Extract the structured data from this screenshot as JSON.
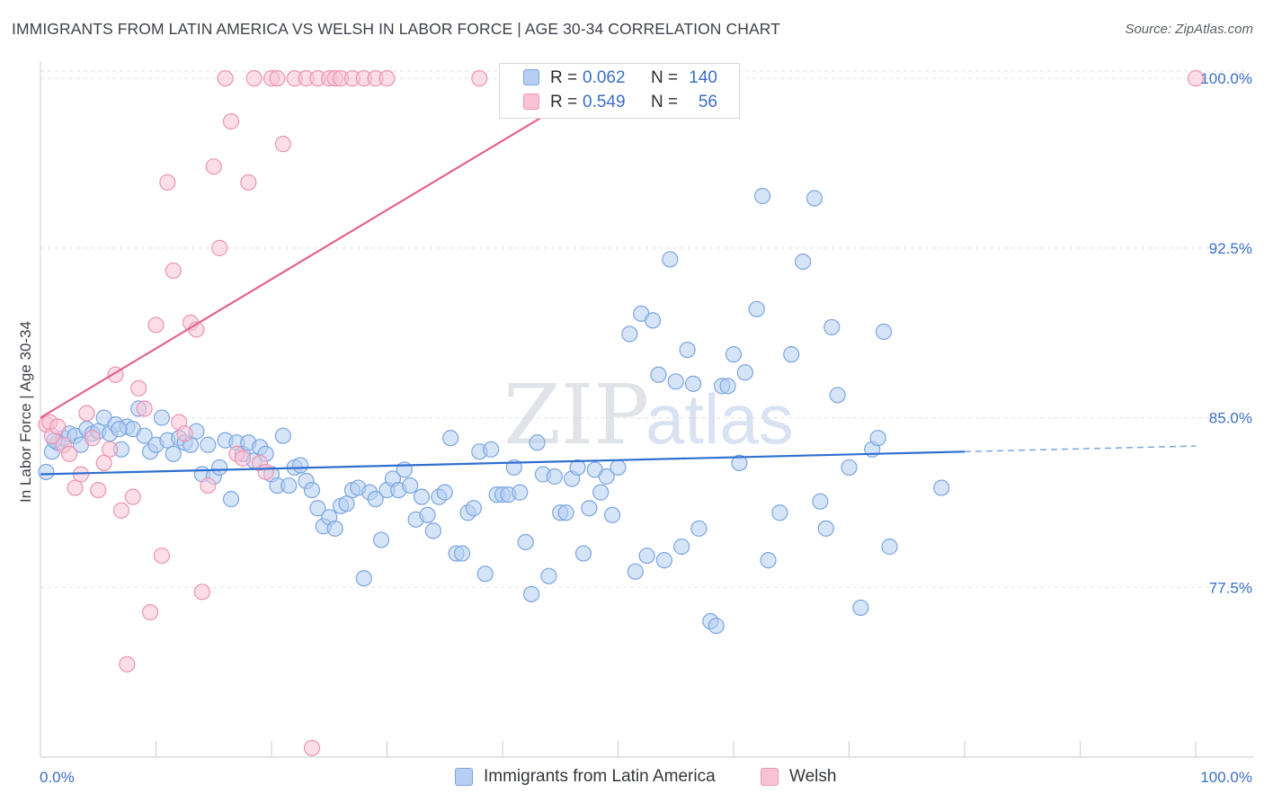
{
  "title": "IMMIGRANTS FROM LATIN AMERICA VS WELSH IN LABOR FORCE | AGE 30-34 CORRELATION CHART",
  "source": "Source: ZipAtlas.com",
  "watermark": {
    "zip": "ZIP",
    "atlas": "atlas"
  },
  "legend": {
    "rows": [
      {
        "r_label": "R =",
        "r_value": "0.062",
        "n_label": "N =",
        "n_value": "140",
        "color": "#7aa6e0"
      },
      {
        "r_label": "R =",
        "r_value": "0.549",
        "n_label": "N =",
        "n_value": "56",
        "color": "#ec94b3"
      }
    ]
  },
  "bottom_legend": [
    "Immigrants from Latin America",
    "Welsh"
  ],
  "chart_data": {
    "type": "scatter",
    "xlabel": "",
    "ylabel": "In Labor Force | Age 30-34",
    "xlim": [
      0,
      100
    ],
    "ylim": [
      70.0,
      101.0
    ],
    "x_tick_labels": [
      "0.0%",
      "100.0%"
    ],
    "y_ticks": [
      77.5,
      85.0,
      92.5,
      100.0
    ],
    "y_tick_labels": [
      "77.5%",
      "85.0%",
      "92.5%",
      "100.0%"
    ],
    "grid": true,
    "legend_position": "top-center",
    "series": [
      {
        "name": "Immigrants from Latin America",
        "color": "#7aa6e0",
        "fill": "#b5cef2",
        "trend": {
          "x": [
            0,
            80
          ],
          "y": [
            82.5,
            83.5
          ],
          "dashed_to": 100
        },
        "points": [
          [
            0.5,
            82.6
          ],
          [
            1.0,
            83.5
          ],
          [
            1.5,
            83.9
          ],
          [
            2.0,
            84.1
          ],
          [
            2.5,
            84.3
          ],
          [
            3.0,
            84.2
          ],
          [
            3.5,
            83.8
          ],
          [
            4.0,
            84.5
          ],
          [
            4.5,
            84.3
          ],
          [
            5.0,
            84.4
          ],
          [
            5.5,
            85.0
          ],
          [
            6.0,
            84.3
          ],
          [
            6.5,
            84.7
          ],
          [
            7.0,
            83.6
          ],
          [
            7.5,
            84.6
          ],
          [
            8.0,
            84.5
          ],
          [
            8.5,
            85.4
          ],
          [
            9.0,
            84.2
          ],
          [
            9.5,
            83.5
          ],
          [
            10.0,
            83.8
          ],
          [
            10.5,
            85.0
          ],
          [
            11.0,
            84.0
          ],
          [
            11.5,
            83.4
          ],
          [
            12.0,
            84.1
          ],
          [
            12.5,
            83.9
          ],
          [
            13.0,
            83.8
          ],
          [
            13.5,
            84.4
          ],
          [
            14.0,
            82.5
          ],
          [
            14.5,
            83.8
          ],
          [
            15.0,
            82.4
          ],
          [
            15.5,
            82.8
          ],
          [
            16.0,
            84.0
          ],
          [
            16.5,
            81.4
          ],
          [
            17.0,
            83.9
          ],
          [
            17.5,
            83.4
          ],
          [
            18.0,
            83.9
          ],
          [
            18.5,
            83.1
          ],
          [
            19.0,
            83.7
          ],
          [
            19.5,
            83.4
          ],
          [
            20.0,
            82.5
          ],
          [
            20.5,
            82.0
          ],
          [
            21.0,
            84.2
          ],
          [
            21.5,
            82.0
          ],
          [
            22.0,
            82.8
          ],
          [
            22.5,
            82.9
          ],
          [
            23.0,
            82.2
          ],
          [
            23.5,
            81.8
          ],
          [
            24.0,
            81.0
          ],
          [
            24.5,
            80.2
          ],
          [
            25.0,
            80.6
          ],
          [
            25.5,
            80.1
          ],
          [
            26.0,
            81.1
          ],
          [
            26.5,
            81.2
          ],
          [
            27.0,
            81.8
          ],
          [
            27.5,
            81.9
          ],
          [
            28.0,
            77.9
          ],
          [
            28.5,
            81.7
          ],
          [
            29.0,
            81.4
          ],
          [
            29.5,
            79.6
          ],
          [
            30.0,
            81.8
          ],
          [
            30.5,
            82.3
          ],
          [
            31.0,
            81.8
          ],
          [
            31.5,
            82.7
          ],
          [
            32.0,
            82.0
          ],
          [
            32.5,
            80.5
          ],
          [
            33.0,
            81.5
          ],
          [
            33.5,
            80.7
          ],
          [
            34.0,
            80.0
          ],
          [
            34.5,
            81.5
          ],
          [
            35.0,
            81.7
          ],
          [
            35.5,
            84.1
          ],
          [
            36.0,
            79.0
          ],
          [
            36.5,
            79.0
          ],
          [
            37.0,
            80.8
          ],
          [
            37.5,
            81.0
          ],
          [
            38.0,
            83.5
          ],
          [
            38.5,
            78.1
          ],
          [
            39.0,
            83.6
          ],
          [
            39.5,
            81.6
          ],
          [
            40.0,
            81.6
          ],
          [
            40.5,
            81.6
          ],
          [
            41.0,
            82.8
          ],
          [
            41.5,
            81.7
          ],
          [
            42.0,
            79.5
          ],
          [
            42.5,
            77.2
          ],
          [
            43.0,
            83.9
          ],
          [
            43.5,
            82.5
          ],
          [
            44.0,
            78.0
          ],
          [
            44.5,
            82.4
          ],
          [
            45.0,
            80.8
          ],
          [
            45.5,
            80.8
          ],
          [
            46.0,
            82.3
          ],
          [
            46.5,
            82.8
          ],
          [
            47.0,
            79.0
          ],
          [
            47.5,
            81.0
          ],
          [
            48.0,
            82.7
          ],
          [
            48.5,
            81.7
          ],
          [
            49.0,
            82.4
          ],
          [
            49.5,
            80.7
          ],
          [
            50.0,
            82.8
          ],
          [
            51.0,
            88.7
          ],
          [
            51.5,
            78.2
          ],
          [
            52.0,
            89.6
          ],
          [
            52.5,
            78.9
          ],
          [
            53.0,
            89.3
          ],
          [
            53.5,
            86.9
          ],
          [
            54.0,
            78.7
          ],
          [
            54.5,
            92.0
          ],
          [
            55.0,
            86.6
          ],
          [
            55.5,
            79.3
          ],
          [
            56.0,
            88.0
          ],
          [
            56.5,
            86.5
          ],
          [
            57.0,
            80.1
          ],
          [
            58.0,
            76.0
          ],
          [
            58.5,
            75.8
          ],
          [
            59.0,
            86.4
          ],
          [
            59.5,
            86.4
          ],
          [
            60.0,
            87.8
          ],
          [
            60.5,
            83.0
          ],
          [
            61.0,
            87.0
          ],
          [
            62.0,
            89.8
          ],
          [
            62.5,
            94.8
          ],
          [
            63.0,
            78.7
          ],
          [
            64.0,
            80.8
          ],
          [
            65.0,
            87.8
          ],
          [
            66.0,
            91.9
          ],
          [
            67.0,
            94.7
          ],
          [
            67.5,
            81.3
          ],
          [
            68.0,
            80.1
          ],
          [
            68.5,
            89.0
          ],
          [
            69.0,
            86.0
          ],
          [
            70.0,
            82.8
          ],
          [
            71.0,
            76.6
          ],
          [
            72.0,
            83.6
          ],
          [
            72.5,
            84.1
          ],
          [
            73.0,
            88.8
          ],
          [
            73.5,
            79.3
          ],
          [
            78.0,
            81.9
          ],
          [
            1.2,
            84.0
          ],
          [
            6.8,
            84.5
          ]
        ]
      },
      {
        "name": "Welsh",
        "color": "#ec94b3",
        "fill": "#f8c2d4",
        "trend": {
          "x": [
            0,
            49
          ],
          "y": [
            85.0,
            100.0
          ]
        },
        "points": [
          [
            0.5,
            84.7
          ],
          [
            0.8,
            84.8
          ],
          [
            1.0,
            84.2
          ],
          [
            1.5,
            84.6
          ],
          [
            2.0,
            83.8
          ],
          [
            2.5,
            83.4
          ],
          [
            3.0,
            81.9
          ],
          [
            3.5,
            82.5
          ],
          [
            4.0,
            85.2
          ],
          [
            4.5,
            84.1
          ],
          [
            5.0,
            81.8
          ],
          [
            5.5,
            83.0
          ],
          [
            6.0,
            83.6
          ],
          [
            6.5,
            86.9
          ],
          [
            7.0,
            80.9
          ],
          [
            7.5,
            74.1
          ],
          [
            8.0,
            81.5
          ],
          [
            8.5,
            86.3
          ],
          [
            9.0,
            85.4
          ],
          [
            9.5,
            76.4
          ],
          [
            10.0,
            89.1
          ],
          [
            10.5,
            78.9
          ],
          [
            11.0,
            95.4
          ],
          [
            11.5,
            91.5
          ],
          [
            12.0,
            84.8
          ],
          [
            12.5,
            84.3
          ],
          [
            13.0,
            89.2
          ],
          [
            13.5,
            88.9
          ],
          [
            14.0,
            77.3
          ],
          [
            14.5,
            82.0
          ],
          [
            15.0,
            96.1
          ],
          [
            15.5,
            92.5
          ],
          [
            16.0,
            100.0
          ],
          [
            16.5,
            98.1
          ],
          [
            17.0,
            83.4
          ],
          [
            17.5,
            83.2
          ],
          [
            18.0,
            95.4
          ],
          [
            18.5,
            100.0
          ],
          [
            19.0,
            83.0
          ],
          [
            19.5,
            82.6
          ],
          [
            20.0,
            100.0
          ],
          [
            20.5,
            100.0
          ],
          [
            21.0,
            97.1
          ],
          [
            22.0,
            100.0
          ],
          [
            23.0,
            100.0
          ],
          [
            23.5,
            70.4
          ],
          [
            24.0,
            100.0
          ],
          [
            25.0,
            100.0
          ],
          [
            25.5,
            100.0
          ],
          [
            26.0,
            100.0
          ],
          [
            27.0,
            100.0
          ],
          [
            28.0,
            100.0
          ],
          [
            29.0,
            100.0
          ],
          [
            30.0,
            100.0
          ],
          [
            38.0,
            100.0
          ],
          [
            100.0,
            100.0
          ]
        ]
      }
    ]
  }
}
